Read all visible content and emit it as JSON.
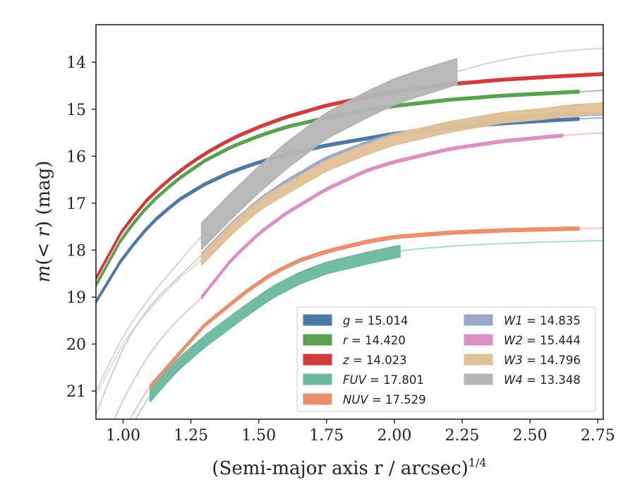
{
  "chart_data": {
    "type": "line",
    "xlabel": "(Semi-major axis r / arcsec)",
    "xlabel_exponent": "1/4",
    "ylabel": "m(< r) (mag)",
    "xlim": [
      0.9,
      2.77
    ],
    "ylim": [
      21.6,
      13.2
    ],
    "y_inverted": true,
    "grid": false,
    "legend_position": "lower-right",
    "x_ticks": [
      1.0,
      1.25,
      1.5,
      1.75,
      2.0,
      2.25,
      2.5,
      2.75
    ],
    "x_tick_labels": [
      "1.00",
      "1.25",
      "1.50",
      "1.75",
      "2.00",
      "2.25",
      "2.50",
      "2.75"
    ],
    "y_ticks": [
      14,
      15,
      16,
      17,
      18,
      19,
      20,
      21
    ],
    "y_tick_labels": [
      "14",
      "15",
      "16",
      "17",
      "18",
      "19",
      "20",
      "21"
    ],
    "series": [
      {
        "name": "g = 15.014",
        "var": "g",
        "val": "15.014",
        "color": "#4c78a8",
        "x": [
          0.9,
          1.0,
          1.1,
          1.2,
          1.3,
          1.4,
          1.5,
          1.6,
          1.75,
          1.9,
          2.0,
          2.2,
          2.4,
          2.6,
          2.77
        ],
        "y": [
          19.1,
          18.15,
          17.45,
          16.95,
          16.6,
          16.33,
          16.13,
          15.97,
          15.77,
          15.62,
          15.52,
          15.4,
          15.3,
          15.23,
          15.18
        ],
        "band_x": [
          0.9,
          2.68
        ],
        "band_width": 0.05
      },
      {
        "name": "r = 14.420",
        "var": "r",
        "val": "14.420",
        "color": "#59a14f",
        "x": [
          0.9,
          1.0,
          1.1,
          1.2,
          1.3,
          1.4,
          1.5,
          1.6,
          1.75,
          1.9,
          2.0,
          2.2,
          2.4,
          2.6,
          2.77
        ],
        "y": [
          18.75,
          17.7,
          17.0,
          16.5,
          16.1,
          15.8,
          15.57,
          15.38,
          15.18,
          15.02,
          14.93,
          14.8,
          14.71,
          14.65,
          14.6
        ],
        "band_x": [
          0.9,
          2.68
        ],
        "band_width": 0.05
      },
      {
        "name": "z = 14.023",
        "var": "z",
        "val": "14.023",
        "color": "#d03b3b",
        "x": [
          0.9,
          1.0,
          1.1,
          1.2,
          1.3,
          1.4,
          1.5,
          1.6,
          1.75,
          1.9,
          2.0,
          2.2,
          2.4,
          2.6,
          2.77
        ],
        "y": [
          18.6,
          17.55,
          16.85,
          16.35,
          15.95,
          15.63,
          15.38,
          15.17,
          14.92,
          14.74,
          14.63,
          14.47,
          14.37,
          14.3,
          14.25
        ],
        "band_x": [
          0.9,
          2.77
        ],
        "band_width": 0.05
      },
      {
        "name": "FUV = 17.801",
        "var": "FUV",
        "val": "17.801",
        "color": "#6cb8a0",
        "x": [
          0.9,
          1.0,
          1.1,
          1.2,
          1.3,
          1.45,
          1.55,
          1.65,
          1.75,
          1.9,
          2.02,
          2.2,
          2.4,
          2.6,
          2.77
        ],
        "y": [
          23.4,
          22.1,
          21.1,
          20.45,
          19.95,
          19.3,
          18.9,
          18.6,
          18.38,
          18.17,
          18.02,
          17.92,
          17.86,
          17.82,
          17.8
        ],
        "band_x": [
          1.1,
          2.02
        ],
        "band_width": 0.24
      },
      {
        "name": "NUV = 17.529",
        "var": "NUV",
        "val": "17.529",
        "color": "#e8906b",
        "x": [
          0.9,
          1.0,
          1.1,
          1.2,
          1.3,
          1.45,
          1.55,
          1.65,
          1.75,
          1.9,
          2.0,
          2.2,
          2.4,
          2.6,
          2.77
        ],
        "y": [
          23.3,
          21.9,
          20.9,
          20.25,
          19.6,
          18.9,
          18.5,
          18.22,
          18.03,
          17.82,
          17.72,
          17.63,
          17.58,
          17.55,
          17.53
        ],
        "band_x": [
          1.1,
          2.68
        ],
        "band_width": 0.06
      },
      {
        "name": "W1 = 14.835",
        "var": "W1",
        "val": "14.835",
        "color": "#9aa8cc",
        "x": [
          0.9,
          1.0,
          1.1,
          1.2,
          1.29,
          1.4,
          1.5,
          1.6,
          1.75,
          1.9,
          2.0,
          2.2,
          2.4,
          2.6,
          2.77
        ],
        "y": [
          21.5,
          20.1,
          19.2,
          18.6,
          18.1,
          17.45,
          16.95,
          16.55,
          16.05,
          15.72,
          15.55,
          15.33,
          15.2,
          15.12,
          15.08
        ],
        "band_x": [
          1.29,
          2.77
        ],
        "band_width": 0.07
      },
      {
        "name": "W2 = 15.444",
        "var": "W2",
        "val": "15.444",
        "color": "#dc8fc4",
        "x": [
          0.9,
          1.0,
          1.1,
          1.2,
          1.29,
          1.4,
          1.5,
          1.6,
          1.75,
          1.9,
          2.0,
          2.2,
          2.4,
          2.6,
          2.77
        ],
        "y": [
          22.5,
          21.2,
          20.2,
          19.5,
          19.0,
          18.2,
          17.65,
          17.22,
          16.7,
          16.3,
          16.12,
          15.85,
          15.68,
          15.57,
          15.5
        ],
        "band_x": [
          1.29,
          2.62
        ],
        "band_width": 0.05
      },
      {
        "name": "W3 = 14.796",
        "var": "W3",
        "val": "14.796",
        "color": "#dfc197",
        "x": [
          0.9,
          1.0,
          1.1,
          1.2,
          1.29,
          1.4,
          1.5,
          1.6,
          1.75,
          1.9,
          2.0,
          2.2,
          2.4,
          2.55,
          2.65,
          2.77
        ],
        "y": [
          21.1,
          20.0,
          19.25,
          18.65,
          18.2,
          17.55,
          17.05,
          16.7,
          16.2,
          15.85,
          15.65,
          15.38,
          15.18,
          15.1,
          15.02,
          14.98
        ],
        "band_x": [
          1.29,
          2.77
        ],
        "band_width": 0.22
      },
      {
        "name": "W4 = 13.348",
        "var": "W4",
        "val": "13.348",
        "color": "#b5b5b5",
        "x": [
          0.9,
          1.0,
          1.1,
          1.2,
          1.29,
          1.4,
          1.5,
          1.6,
          1.75,
          1.9,
          2.0,
          2.1,
          2.23,
          2.4,
          2.6,
          2.77
        ],
        "y": [
          21.0,
          19.85,
          19.0,
          18.3,
          17.7,
          17.05,
          16.5,
          16.0,
          15.35,
          14.9,
          14.63,
          14.43,
          14.2,
          13.95,
          13.78,
          13.7
        ],
        "band_x": [
          1.29,
          2.23
        ],
        "band_width": 0.55
      }
    ]
  }
}
